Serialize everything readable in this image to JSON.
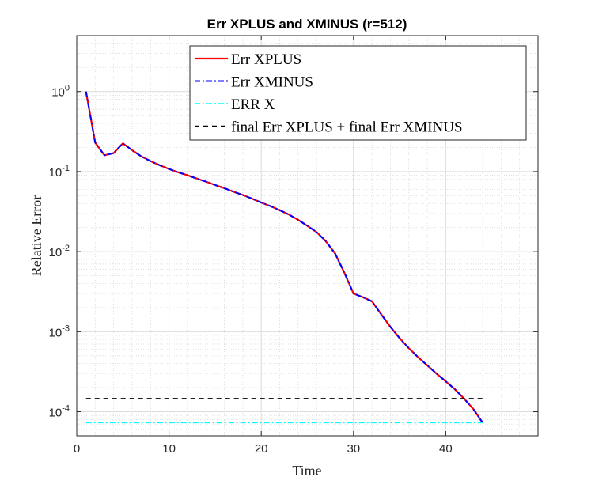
{
  "chart_data": {
    "type": "line",
    "title": "Err XPLUS and XMINUS (r=512)",
    "xlabel": "Time",
    "ylabel": "Relative Error",
    "xlim": [
      0,
      50
    ],
    "ylim": [
      5e-05,
      5
    ],
    "yscale": "log",
    "grid": true,
    "minor_grid": true,
    "legend_position": "top-right",
    "x_ticks": [
      "0",
      "10",
      "20",
      "30",
      "40"
    ],
    "y_ticks": [
      {
        "base": "10",
        "exp": "-4",
        "value": 0.0001
      },
      {
        "base": "10",
        "exp": "-3",
        "value": 0.001
      },
      {
        "base": "10",
        "exp": "-2",
        "value": 0.01
      },
      {
        "base": "10",
        "exp": "-1",
        "value": 0.1
      },
      {
        "base": "10",
        "exp": "0",
        "value": 1
      }
    ],
    "series": [
      {
        "name": "Err XPLUS",
        "color": "#ff0000",
        "dash": "solid",
        "x": [
          1,
          2,
          3,
          4,
          5,
          6,
          7,
          8,
          9,
          10,
          11,
          12,
          13,
          14,
          15,
          16,
          17,
          18,
          19,
          20,
          21,
          22,
          23,
          24,
          25,
          26,
          27,
          28,
          29,
          30,
          31,
          32,
          33,
          34,
          35,
          36,
          37,
          38,
          39,
          40,
          41,
          42,
          43,
          44
        ],
        "y": [
          1,
          0.23,
          0.16,
          0.17,
          0.225,
          0.185,
          0.155,
          0.135,
          0.12,
          0.108,
          0.098,
          0.09,
          0.082,
          0.075,
          0.068,
          0.062,
          0.056,
          0.051,
          0.046,
          0.041,
          0.037,
          0.033,
          0.029,
          0.025,
          0.021,
          0.0175,
          0.0135,
          0.0095,
          0.0055,
          0.003,
          0.0027,
          0.0024,
          0.00165,
          0.00115,
          0.00083,
          0.00062,
          0.00048,
          0.00038,
          0.0003,
          0.00024,
          0.00019,
          0.000145,
          0.000108,
          7.3e-05
        ]
      },
      {
        "name": "Err XMINUS",
        "color": "#0000ff",
        "dash": "dashdot",
        "x": [
          1,
          2,
          3,
          4,
          5,
          6,
          7,
          8,
          9,
          10,
          11,
          12,
          13,
          14,
          15,
          16,
          17,
          18,
          19,
          20,
          21,
          22,
          23,
          24,
          25,
          26,
          27,
          28,
          29,
          30,
          31,
          32,
          33,
          34,
          35,
          36,
          37,
          38,
          39,
          40,
          41,
          42,
          43,
          44
        ],
        "y": [
          1,
          0.23,
          0.16,
          0.17,
          0.225,
          0.185,
          0.155,
          0.135,
          0.12,
          0.108,
          0.098,
          0.09,
          0.082,
          0.075,
          0.068,
          0.062,
          0.056,
          0.051,
          0.046,
          0.041,
          0.037,
          0.033,
          0.029,
          0.025,
          0.021,
          0.0175,
          0.0135,
          0.0095,
          0.0055,
          0.003,
          0.0027,
          0.0024,
          0.00165,
          0.00115,
          0.00083,
          0.00062,
          0.00048,
          0.00038,
          0.0003,
          0.00024,
          0.00019,
          0.000145,
          0.000108,
          7.3e-05
        ]
      },
      {
        "name": "ERR X",
        "color": "#00ffff",
        "dash": "dashdot",
        "x": [
          1,
          44
        ],
        "y": [
          7.3e-05,
          7.3e-05
        ]
      },
      {
        "name": "final Err XPLUS + final Err XMINUS",
        "color": "#000000",
        "dash": "dashed",
        "x": [
          1,
          44
        ],
        "y": [
          0.000146,
          0.000146
        ]
      }
    ]
  }
}
